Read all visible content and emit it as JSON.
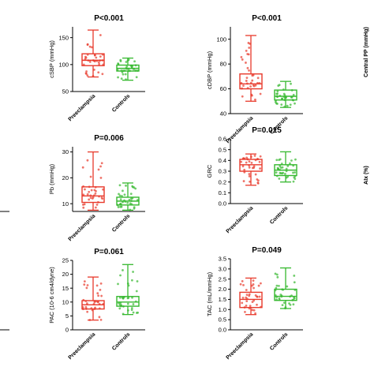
{
  "colors": {
    "preeclampsia": "#e8392b",
    "controls": "#35b82e",
    "axis": "#000000"
  },
  "chart_data": [
    {
      "type": "box",
      "title": "P<0.001",
      "ylabel": "cSBP (mmHg)",
      "ylim": [
        50,
        170
      ],
      "yticks": [
        50,
        100,
        150
      ],
      "categories": [
        "Preeclampsia",
        "Controls"
      ],
      "boxes": [
        {
          "name": "Preeclampsia",
          "min": 77,
          "q1": 98,
          "median": 108,
          "q3": 120,
          "max": 164
        },
        {
          "name": "Controls",
          "min": 71,
          "q1": 88,
          "median": 93,
          "q3": 99,
          "max": 112
        }
      ]
    },
    {
      "type": "box",
      "title": "P<0.001",
      "ylabel": "cDBP (mmHg)",
      "ylim": [
        40,
        110
      ],
      "yticks": [
        40,
        60,
        80,
        100
      ],
      "categories": [
        "Preeclampsia",
        "Controls"
      ],
      "boxes": [
        {
          "name": "Preeclampsia",
          "min": 50,
          "q1": 60,
          "median": 64,
          "q3": 72,
          "max": 103
        },
        {
          "name": "Controls",
          "min": 45,
          "q1": 51,
          "median": 54,
          "q3": 59,
          "max": 66
        }
      ]
    },
    {
      "type": "box",
      "title": "P=0.006",
      "ylabel": "Pb (mmHg)",
      "ylim": [
        7,
        32
      ],
      "yticks": [
        10,
        20,
        30
      ],
      "categories": [
        "Preeclampsia",
        "Controls"
      ],
      "boxes": [
        {
          "name": "Preeclampsia",
          "min": 7.5,
          "q1": 10.5,
          "median": 13,
          "q3": 16.5,
          "max": 30
        },
        {
          "name": "Controls",
          "min": 7.5,
          "q1": 9.5,
          "median": 11,
          "q3": 12.5,
          "max": 18
        }
      ]
    },
    {
      "type": "box",
      "title": "P=0.015",
      "ylabel": "GRC",
      "ylim": [
        0.0,
        0.6
      ],
      "yticks": [
        0.0,
        0.1,
        0.2,
        0.3,
        0.4,
        0.5,
        0.6
      ],
      "categories": [
        "Preeclampsia",
        "Controls"
      ],
      "boxes": [
        {
          "name": "Preeclampsia",
          "min": 0.17,
          "q1": 0.3,
          "median": 0.36,
          "q3": 0.41,
          "max": 0.46
        },
        {
          "name": "Controls",
          "min": 0.2,
          "q1": 0.26,
          "median": 0.31,
          "q3": 0.36,
          "max": 0.48
        }
      ]
    },
    {
      "type": "box",
      "title": "P=0.061",
      "ylabel": "PAC (10-6 cm4/dyne)",
      "ylim": [
        0,
        25
      ],
      "yticks": [
        0,
        5,
        10,
        15,
        20,
        25
      ],
      "categories": [
        "Preeclampsia",
        "Controls"
      ],
      "boxes": [
        {
          "name": "Preeclampsia",
          "min": 3.5,
          "q1": 7.5,
          "median": 9,
          "q3": 10.5,
          "max": 19
        },
        {
          "name": "Controls",
          "min": 5.5,
          "q1": 8.5,
          "median": 10,
          "q3": 12,
          "max": 23.5
        }
      ]
    },
    {
      "type": "box",
      "title": "P=0.049",
      "ylabel": "TAC (mL/mmHg)",
      "ylim": [
        0.0,
        3.5
      ],
      "yticks": [
        0.0,
        0.5,
        1.0,
        1.5,
        2.0,
        2.5,
        3.0,
        3.5
      ],
      "categories": [
        "Preeclampsia",
        "Controls"
      ],
      "boxes": [
        {
          "name": "Preeclampsia",
          "min": 0.75,
          "q1": 1.1,
          "median": 1.5,
          "q3": 1.85,
          "max": 2.55
        },
        {
          "name": "Controls",
          "min": 1.05,
          "q1": 1.45,
          "median": 1.65,
          "q3": 2.0,
          "max": 3.05
        }
      ]
    }
  ],
  "edge_labels": [
    "Central PP (mmHg)",
    "AIx (%)"
  ]
}
